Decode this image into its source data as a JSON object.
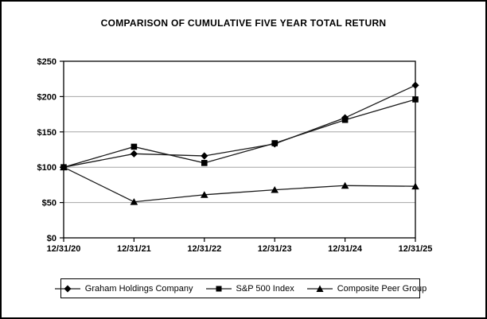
{
  "title": "COMPARISON OF CUMULATIVE FIVE YEAR TOTAL RETURN",
  "colors": {
    "axis": "#000000",
    "grid": "#a6a6a6",
    "series_line": "#1a1a1a",
    "marker": "#000000",
    "text": "#000000",
    "background": "#ffffff"
  },
  "chart_data": {
    "type": "line",
    "title": "COMPARISON OF CUMULATIVE FIVE YEAR TOTAL RETURN",
    "categories": [
      "12/31/20",
      "12/31/21",
      "12/31/22",
      "12/31/23",
      "12/31/24",
      "12/31/25"
    ],
    "series": [
      {
        "name": "Graham Holdings Company",
        "marker": "diamond",
        "values": [
          100,
          119,
          116,
          133,
          170,
          216
        ]
      },
      {
        "name": "S&P 500 Index",
        "marker": "square",
        "values": [
          100,
          129,
          106,
          134,
          167,
          196
        ]
      },
      {
        "name": "Composite Peer Group",
        "marker": "triangle",
        "values": [
          100,
          51,
          61,
          68,
          74,
          73
        ]
      }
    ],
    "xlabel": "",
    "ylabel": "",
    "ylim": [
      0,
      250
    ],
    "ytick_step": 50,
    "ytick_labels": [
      "$0",
      "$50",
      "$100",
      "$150",
      "$200",
      "$250"
    ],
    "grid": true,
    "legend_position": "bottom"
  }
}
